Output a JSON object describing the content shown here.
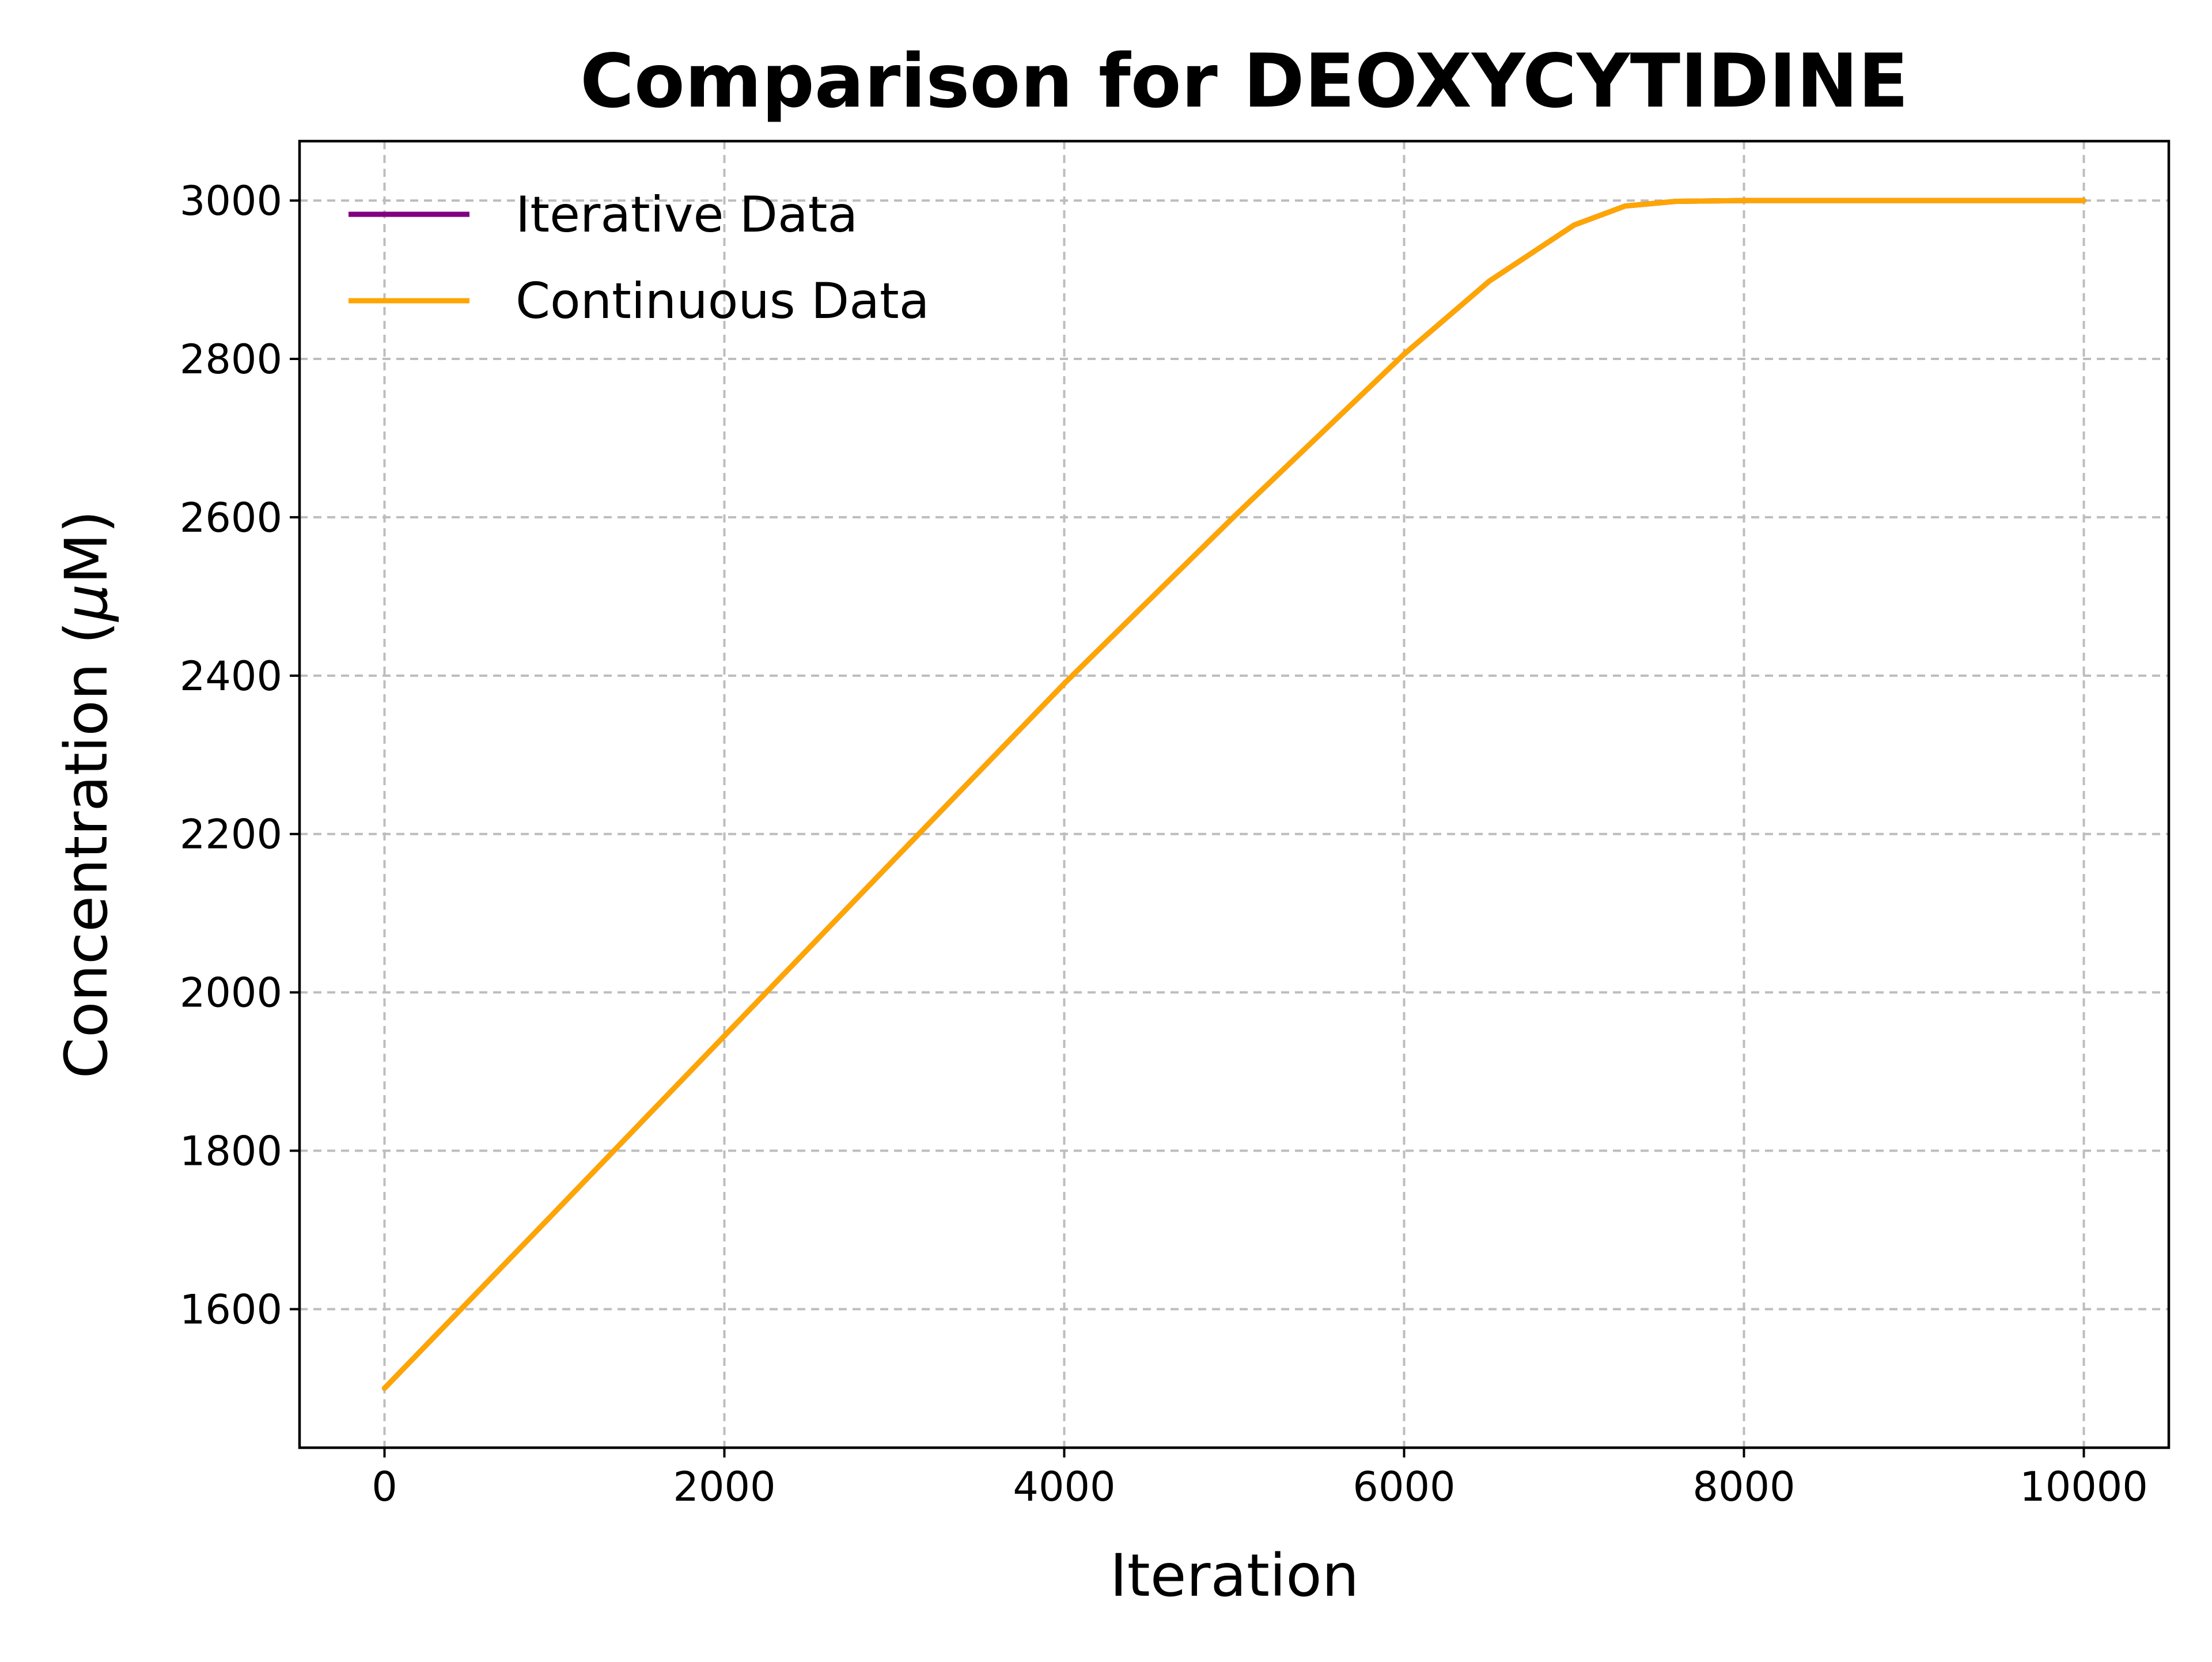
{
  "chart_data": {
    "type": "line",
    "title": "Comparison for DEOXYCYTIDINE",
    "xlabel": "Iteration",
    "ylabel": "Concentration ($\\mu$M)",
    "ylabel_parts": {
      "before": "Concentration (",
      "mu": "μ",
      "after": "M)"
    },
    "xlim": [
      -500,
      10500
    ],
    "ylim": [
      1425,
      3075
    ],
    "xticks": [
      0,
      2000,
      4000,
      6000,
      8000,
      10000
    ],
    "yticks": [
      1600,
      1800,
      2000,
      2200,
      2400,
      2600,
      2800,
      3000
    ],
    "grid": true,
    "legend_position": "upper-left",
    "series": [
      {
        "name": "Iterative Data",
        "color": "#800080",
        "x": [
          0,
          1000,
          2000,
          3000,
          4000,
          5000,
          6000,
          6500,
          7000,
          7300,
          7600,
          8000,
          9000,
          10000
        ],
        "y": [
          1500,
          1722,
          1945,
          2168,
          2390,
          2601,
          2806,
          2898,
          2969,
          2993,
          2999,
          3000,
          3000,
          3000
        ]
      },
      {
        "name": "Continuous Data",
        "color": "#FFA500",
        "x": [
          0,
          1000,
          2000,
          3000,
          4000,
          5000,
          6000,
          6500,
          7000,
          7300,
          7600,
          8000,
          9000,
          10000
        ],
        "y": [
          1500,
          1722,
          1945,
          2168,
          2390,
          2601,
          2806,
          2898,
          2969,
          2993,
          2999,
          3000,
          3000,
          3000
        ]
      }
    ]
  }
}
